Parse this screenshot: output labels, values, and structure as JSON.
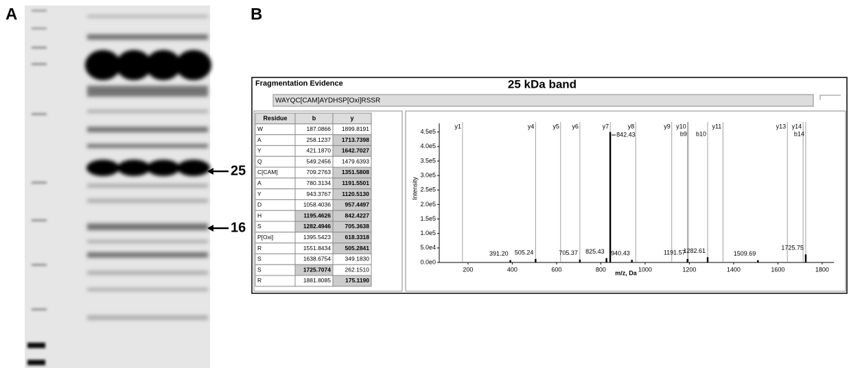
{
  "panel_a": {
    "label": "A",
    "markers": [
      "25",
      "16"
    ]
  },
  "panel_b": {
    "label": "B",
    "window_title": "Fragmentation Evidence",
    "title": "25 kDa band",
    "sequence": "WAYQC[CAM]AYDHSP[Oxi]RSSR",
    "table": {
      "header": [
        "Residue",
        "b",
        "y"
      ],
      "rows": [
        [
          "W",
          "187.0866",
          "1899.8191"
        ],
        [
          "A",
          "258.1237",
          "1713.7398"
        ],
        [
          "Y",
          "421.1870",
          "1642.7027"
        ],
        [
          "Q",
          "549.2456",
          "1479.6393"
        ],
        [
          "C[CAM]",
          "709.2763",
          "1351.5808"
        ],
        [
          "A",
          "780.3134",
          "1191.5501"
        ],
        [
          "Y",
          "943.3767",
          "1120.5130"
        ],
        [
          "D",
          "1058.4036",
          "957.4497"
        ],
        [
          "H",
          "1195.4626",
          "842.4227"
        ],
        [
          "S",
          "1282.4946",
          "705.3638"
        ],
        [
          "P[Oxi]",
          "1395.5423",
          "618.3318"
        ],
        [
          "R",
          "1551.8434",
          "505.2841"
        ],
        [
          "S",
          "1638.6754",
          "349.1830"
        ],
        [
          "S",
          "1725.7074",
          "262.1510"
        ],
        [
          "R",
          "1881.8085",
          "175.1190"
        ]
      ],
      "b_match": [
        false,
        false,
        false,
        false,
        false,
        false,
        false,
        false,
        true,
        true,
        false,
        false,
        false,
        true,
        false
      ],
      "y_match": [
        false,
        true,
        true,
        false,
        true,
        true,
        true,
        true,
        true,
        true,
        true,
        true,
        false,
        false,
        true
      ]
    },
    "spectrum": {
      "type": "bar",
      "y_label": "Intensity",
      "x_label": "m/z, Da",
      "xlim": [
        70,
        1853
      ],
      "ylim": [
        0,
        480000
      ],
      "xticks": [
        200,
        400,
        600,
        800,
        1000,
        1200,
        1400,
        1600,
        1800
      ],
      "yticks": [
        {
          "value": 0,
          "label": "0.0e0"
        },
        {
          "value": 50000,
          "label": "5.0e4"
        },
        {
          "value": 100000,
          "label": "1.0e5"
        },
        {
          "value": 150000,
          "label": "1.5e5"
        },
        {
          "value": 200000,
          "label": "2.0e5"
        },
        {
          "value": 250000,
          "label": "2.5e5"
        },
        {
          "value": 300000,
          "label": "3.0e5"
        },
        {
          "value": 350000,
          "label": "3.5e5"
        },
        {
          "value": 400000,
          "label": "4.0e5"
        },
        {
          "value": 450000,
          "label": "4.5e5"
        }
      ],
      "ions": [
        {
          "label": "y1",
          "mz": 175.119
        },
        {
          "label": "y4",
          "mz": 505.2841
        },
        {
          "label": "y5",
          "mz": 618.3318
        },
        {
          "label": "y6",
          "mz": 705.3638
        },
        {
          "label": "y7",
          "mz": 842.4227
        },
        {
          "label": "y8",
          "mz": 957.4497
        },
        {
          "label": "y9",
          "mz": 1120.513
        },
        {
          "label": "y10",
          "mz": 1191.5501
        },
        {
          "label": "b9",
          "mz": 1195.4626
        },
        {
          "label": "b10",
          "mz": 1282.4946
        },
        {
          "label": "y11",
          "mz": 1351.5808
        },
        {
          "label": "y13",
          "mz": 1642.7027
        },
        {
          "label": "y14",
          "mz": 1713.7398
        },
        {
          "label": "b14",
          "mz": 1725.7074
        }
      ],
      "peaks": [
        {
          "mz": 391.2,
          "label": "391.20",
          "intensity": 8000
        },
        {
          "mz": 505.24,
          "label": "505.24",
          "intensity": 12000
        },
        {
          "mz": 705.37,
          "label": "705.37",
          "intensity": 10000
        },
        {
          "mz": 825.43,
          "label": "825.43",
          "intensity": 15000
        },
        {
          "mz": 842.43,
          "label": "842.43",
          "intensity": 450000
        },
        {
          "mz": 940.43,
          "label": "940.43",
          "intensity": 9000
        },
        {
          "mz": 1191.57,
          "label": "1191.57",
          "intensity": 12000
        },
        {
          "mz": 1282.61,
          "label": "1282.61",
          "intensity": 18000
        },
        {
          "mz": 1509.69,
          "label": "1509.69",
          "intensity": 8000
        },
        {
          "mz": 1725.75,
          "label": "1725.75",
          "intensity": 28000
        }
      ]
    }
  }
}
